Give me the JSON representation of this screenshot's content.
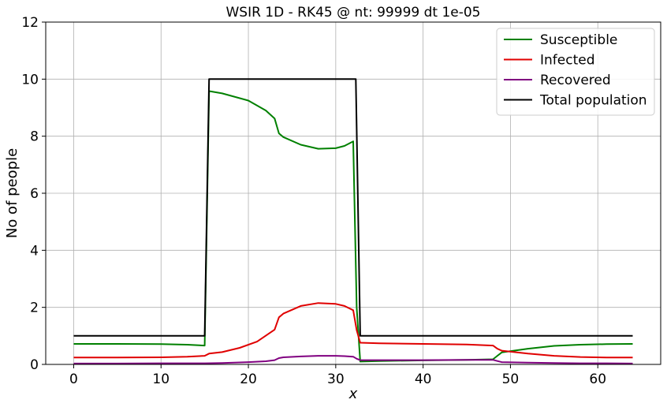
{
  "chart_data": {
    "type": "line",
    "title": "WSIR 1D - RK45 @ nt: 99999 dt 1e-05",
    "xlabel": "x",
    "ylabel": "No of people",
    "xlim": [
      -3.2,
      67.2
    ],
    "ylim": [
      0,
      12
    ],
    "xticks": [
      0,
      10,
      20,
      30,
      40,
      50,
      60
    ],
    "yticks": [
      0,
      2,
      4,
      6,
      8,
      10,
      12
    ],
    "grid": true,
    "legend_position": "top-right",
    "series": [
      {
        "name": "Susceptible",
        "color": "#008000",
        "x": [
          0,
          5,
          10,
          13,
          15,
          15.5,
          17,
          20,
          22,
          23,
          23.5,
          24,
          26,
          28,
          30,
          31,
          32,
          32.4,
          32.8,
          35,
          40,
          45,
          48,
          48.5,
          49,
          52,
          55,
          58,
          61,
          64
        ],
        "y": [
          0.72,
          0.72,
          0.71,
          0.69,
          0.66,
          9.58,
          9.5,
          9.25,
          8.9,
          8.62,
          8.1,
          7.97,
          7.7,
          7.56,
          7.58,
          7.66,
          7.82,
          2.0,
          0.1,
          0.12,
          0.14,
          0.16,
          0.18,
          0.3,
          0.42,
          0.55,
          0.65,
          0.69,
          0.71,
          0.72
        ]
      },
      {
        "name": "Infected",
        "color": "#e00000",
        "x": [
          0,
          5,
          10,
          13,
          15,
          15.5,
          17,
          19,
          21,
          23,
          23.5,
          24,
          26,
          28,
          30,
          31,
          32,
          32.4,
          32.8,
          35,
          40,
          45,
          48,
          48.5,
          49,
          52,
          55,
          58,
          61,
          64
        ],
        "y": [
          0.24,
          0.24,
          0.25,
          0.27,
          0.3,
          0.38,
          0.43,
          0.58,
          0.8,
          1.22,
          1.65,
          1.78,
          2.05,
          2.15,
          2.12,
          2.05,
          1.9,
          1.2,
          0.76,
          0.74,
          0.72,
          0.7,
          0.66,
          0.55,
          0.48,
          0.38,
          0.3,
          0.26,
          0.24,
          0.24
        ]
      },
      {
        "name": "Recovered",
        "color": "#800080",
        "x": [
          0,
          5,
          10,
          15,
          17,
          20,
          22,
          23,
          23.5,
          24,
          26,
          28,
          30,
          31,
          32,
          32.4,
          32.8,
          35,
          40,
          45,
          48,
          48.5,
          49,
          52,
          55,
          58,
          61,
          64
        ],
        "y": [
          0.03,
          0.03,
          0.04,
          0.04,
          0.05,
          0.08,
          0.11,
          0.15,
          0.22,
          0.25,
          0.28,
          0.3,
          0.3,
          0.29,
          0.27,
          0.2,
          0.15,
          0.15,
          0.15,
          0.16,
          0.16,
          0.12,
          0.08,
          0.06,
          0.05,
          0.04,
          0.04,
          0.03
        ]
      },
      {
        "name": "Total population",
        "color": "#000000",
        "x": [
          0,
          15,
          15.5,
          32.3,
          32.8,
          64
        ],
        "y": [
          1,
          1,
          10,
          10,
          1,
          1
        ]
      }
    ]
  }
}
